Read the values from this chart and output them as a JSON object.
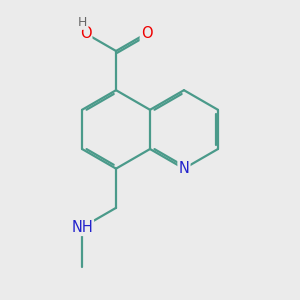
{
  "bg_color": "#ebebeb",
  "bond_color": "#4a9a8a",
  "bond_width": 1.6,
  "dbo": 0.055,
  "atom_colors": {
    "O": "#ee0000",
    "N": "#2222cc",
    "bg": "#ebebeb"
  },
  "font_size": 10.5,
  "bl": 1.0
}
